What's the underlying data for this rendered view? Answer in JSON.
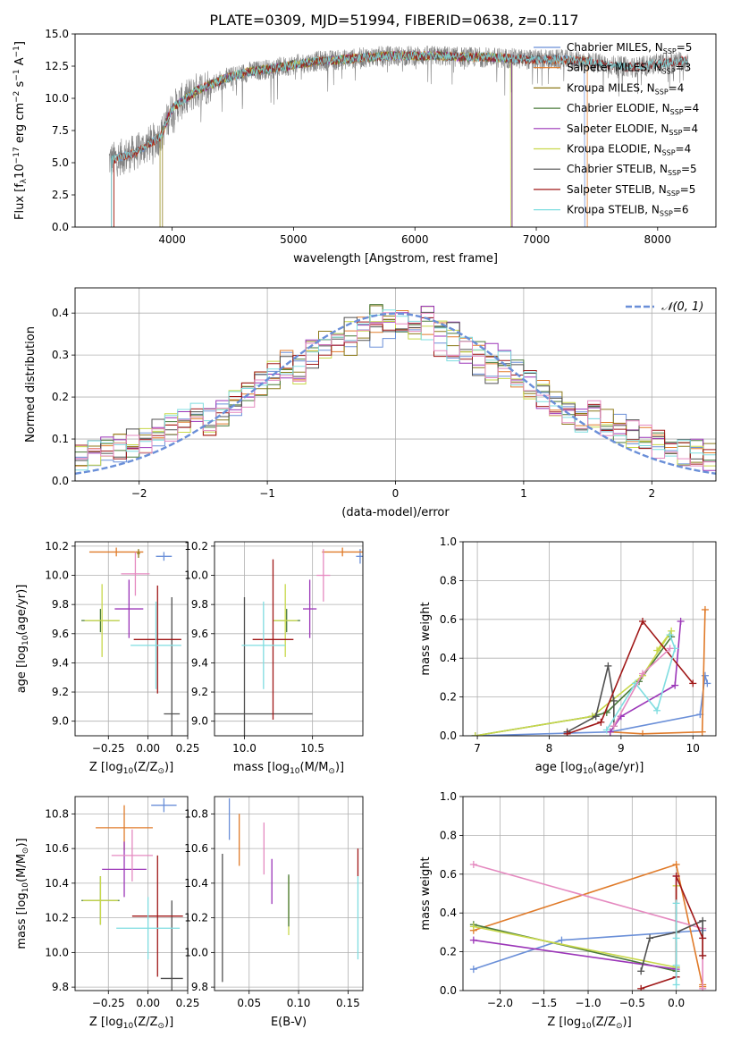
{
  "figure_title": "PLATE=0309, MJD=51994, FIBERID=0638, z=0.117",
  "colors": {
    "Chabrier MILES": "#6a8fd8",
    "Salpeter MILES": "#e07b2a",
    "Kroupa MILES": "#8c7a1a",
    "Chabrier ELODIE": "#4a7a3a",
    "Salpeter ELODIE": "#9b35b8",
    "Kroupa ELODIE": "#c8d84a",
    "Chabrier STELIB": "#505050",
    "Salpeter STELIB": "#a01818",
    "Kroupa STELIB": "#7fdde0",
    "normal": "#6a8fd8"
  },
  "chart_data": [
    {
      "id": "spectrum",
      "type": "line",
      "xlabel": "wavelength [Angstrom, rest frame]",
      "ylabel": "Flux [f_λ 10^-17 erg cm^-2 s^-1 A^-1]",
      "xlim": [
        3200,
        8480
      ],
      "ylim": [
        0,
        15
      ],
      "xticks": [
        4000,
        5000,
        6000,
        7000,
        8000
      ],
      "yticks": [
        0.0,
        2.5,
        5.0,
        7.5,
        10.0,
        12.5,
        15.0
      ],
      "grid": false,
      "legend": "right",
      "legend_entries": [
        "Chabrier MILES, N_SSP=5",
        "Salpeter MILES, N_SSP=3",
        "Kroupa MILES, N_SSP=4",
        "Chabrier ELODIE, N_SSP=4",
        "Salpeter ELODIE, N_SSP=4",
        "Kroupa ELODIE, N_SSP=4",
        "Chabrier STELIB, N_SSP=5",
        "Salpeter STELIB, N_SSP=5",
        "Kroupa STELIB, N_SSP=6"
      ],
      "continuum": {
        "x": [
          3500,
          3700,
          3900,
          4000,
          4200,
          4400,
          4600,
          4800,
          5000,
          5200,
          5400,
          5600,
          5800,
          6000,
          6200,
          6400,
          6600,
          6800,
          7000,
          7200,
          7400,
          7600,
          7800,
          8000,
          8200
        ],
        "y": [
          5.2,
          5.8,
          7.0,
          9.2,
          10.6,
          11.4,
          12.0,
          12.3,
          12.6,
          12.9,
          13.0,
          13.2,
          13.3,
          13.3,
          13.3,
          13.2,
          13.2,
          13.1,
          13.0,
          13.0,
          12.9,
          12.6,
          12.4,
          12.7,
          12.9
        ]
      }
    },
    {
      "id": "residuals",
      "type": "histogram",
      "xlabel": "(data-model)/error",
      "ylabel": "Normed distribution",
      "xlim": [
        -2.5,
        2.5
      ],
      "ylim": [
        0,
        0.46
      ],
      "xticks": [
        -2,
        -1,
        0,
        1,
        2
      ],
      "yticks": [
        0.0,
        0.1,
        0.2,
        0.3,
        0.4
      ],
      "grid": true,
      "legend": "top-right",
      "legend_entries": [
        "N(0,1)"
      ],
      "bin_width": 0.1
    },
    {
      "id": "age-vs-Z",
      "type": "errorbar",
      "xlabel": "Z [log10(Z/Z_sun)]",
      "ylabel": "age [log10(age/yr)]",
      "xlim": [
        -0.46,
        0.25
      ],
      "ylim": [
        8.9,
        10.23
      ],
      "xticks": [
        -0.25,
        0.0,
        0.25
      ],
      "yticks": [
        9.0,
        9.2,
        9.4,
        9.6,
        9.8,
        10.0,
        10.2
      ],
      "grid": true,
      "points": [
        {
          "c": "Chabrier MILES",
          "x": 0.1,
          "xerr": 0.05,
          "y": 10.13,
          "yerr": 0.03
        },
        {
          "c": "Salpeter MILES",
          "x": -0.2,
          "xerr": 0.17,
          "y": 10.16,
          "yerr": 0.03
        },
        {
          "c": "Kroupa MILES",
          "x": -0.06,
          "xerr": 0.01,
          "y": 10.15,
          "yerr": 0.03
        },
        {
          "c": "Chabrier ELODIE",
          "x": -0.3,
          "xerr": 0.12,
          "y": 9.69,
          "yerr": 0.08
        },
        {
          "c": "Salpeter ELODIE",
          "x": -0.12,
          "xerr": 0.09,
          "y": 9.77,
          "yerr": 0.2
        },
        {
          "c": "Kroupa ELODIE",
          "x": -0.29,
          "xerr": 0.11,
          "y": 9.69,
          "yerr": 0.25
        },
        {
          "c": "Chabrier STELIB",
          "x": 0.15,
          "xerr": 0.05,
          "y": 9.05,
          "yerr": 0.8
        },
        {
          "c": "Salpeter STELIB",
          "x": 0.06,
          "xerr": 0.15,
          "y": 9.56,
          "yerr": 0.37
        },
        {
          "c": "Kroupa STELIB",
          "x": 0.05,
          "xerr": 0.16,
          "y": 9.52,
          "yerr": 0.3
        },
        {
          "c": "pink",
          "x": -0.08,
          "xerr": 0.09,
          "y": 10.01,
          "yerr": 0.15
        }
      ]
    },
    {
      "id": "age-vs-mass",
      "type": "errorbar",
      "xlabel": "mass [log10(M/M_sun)]",
      "ylabel": "",
      "xlim": [
        9.78,
        10.87
      ],
      "ylim": [
        8.9,
        10.23
      ],
      "xticks": [
        10.0,
        10.5
      ],
      "yticks": [
        9.0,
        9.2,
        9.4,
        9.6,
        9.8,
        10.0,
        10.2
      ],
      "grid": true,
      "points": [
        {
          "c": "Chabrier MILES",
          "x": 10.85,
          "xerr": 0.03,
          "y": 10.13,
          "yerr": 0.05
        },
        {
          "c": "Salpeter MILES",
          "x": 10.72,
          "xerr": 0.15,
          "y": 10.16,
          "yerr": 0.03
        },
        {
          "c": "Chabrier ELODIE",
          "x": 10.31,
          "xerr": 0.1,
          "y": 9.69,
          "yerr": 0.08
        },
        {
          "c": "Salpeter ELODIE",
          "x": 10.48,
          "xerr": 0.05,
          "y": 9.77,
          "yerr": 0.2
        },
        {
          "c": "Kroupa ELODIE",
          "x": 10.3,
          "xerr": 0.09,
          "y": 9.69,
          "yerr": 0.25
        },
        {
          "c": "Chabrier STELIB",
          "x": 10.0,
          "xerr": 0.5,
          "y": 9.05,
          "yerr": 0.8
        },
        {
          "c": "Salpeter STELIB",
          "x": 10.21,
          "xerr": 0.15,
          "y": 9.56,
          "yerr": 0.55
        },
        {
          "c": "Kroupa STELIB",
          "x": 10.14,
          "xerr": 0.16,
          "y": 9.52,
          "yerr": 0.3
        },
        {
          "c": "pink",
          "x": 10.58,
          "xerr": 0.05,
          "y": 10.0,
          "yerr": 0.18
        }
      ]
    },
    {
      "id": "massweight-vs-age",
      "type": "line",
      "xlabel": "age [log10(age/yr)]",
      "ylabel": "mass weight",
      "xlim": [
        6.8,
        10.32
      ],
      "ylim": [
        0,
        1.0
      ],
      "xticks": [
        7,
        8,
        9,
        10
      ],
      "yticks": [
        0.0,
        0.2,
        0.4,
        0.6,
        0.8,
        1.0
      ],
      "grid": true,
      "series": [
        {
          "c": "Chabrier MILES",
          "x": [
            6.97,
            8.85,
            10.1,
            10.17,
            10.2
          ],
          "y": [
            0.0,
            0.02,
            0.11,
            0.31,
            0.27
          ]
        },
        {
          "c": "Salpeter MILES",
          "x": [
            8.85,
            9.3,
            10.13,
            10.17
          ],
          "y": [
            0.02,
            0.01,
            0.02,
            0.65
          ]
        },
        {
          "c": "Chabrier ELODIE",
          "x": [
            6.97,
            8.6,
            8.8,
            9.25,
            9.7
          ],
          "y": [
            0.0,
            0.1,
            0.12,
            0.28,
            0.51
          ]
        },
        {
          "c": "Salpeter ELODIE",
          "x": [
            8.85,
            9.0,
            9.75,
            9.83
          ],
          "y": [
            0.02,
            0.1,
            0.26,
            0.59
          ]
        },
        {
          "c": "Kroupa ELODIE",
          "x": [
            6.97,
            8.6,
            9.3,
            9.7,
            9.5
          ],
          "y": [
            0.0,
            0.1,
            0.31,
            0.54,
            0.44
          ]
        },
        {
          "c": "Chabrier STELIB",
          "x": [
            8.25,
            8.65,
            8.82,
            8.9,
            8.9
          ],
          "y": [
            0.02,
            0.1,
            0.36,
            0.18,
            0.05
          ]
        },
        {
          "c": "Salpeter STELIB",
          "x": [
            8.25,
            8.72,
            9.3,
            10.0
          ],
          "y": [
            0.01,
            0.07,
            0.59,
            0.27
          ]
        },
        {
          "c": "Kroupa STELIB",
          "x": [
            8.8,
            9.2,
            9.5,
            9.75,
            9.68
          ],
          "y": [
            0.03,
            0.27,
            0.13,
            0.45,
            0.52
          ]
        },
        {
          "c": "pink",
          "x": [
            8.9,
            9.3,
            9.68
          ],
          "y": [
            0.05,
            0.32,
            0.45
          ]
        }
      ]
    },
    {
      "id": "mass-vs-Z",
      "type": "errorbar",
      "xlabel": "Z [log10(Z/Z_sun)]",
      "ylabel": "mass [log10(M/M_sun)]",
      "xlim": [
        -0.46,
        0.25
      ],
      "ylim": [
        9.78,
        10.9
      ],
      "xticks": [
        -0.25,
        0.0,
        0.25
      ],
      "yticks": [
        9.8,
        10.0,
        10.2,
        10.4,
        10.6,
        10.8
      ],
      "grid": true,
      "points": [
        {
          "c": "Chabrier MILES",
          "x": 0.1,
          "xerr": 0.08,
          "y": 10.85,
          "yerr": 0.04
        },
        {
          "c": "Salpeter MILES",
          "x": -0.15,
          "xerr": 0.18,
          "y": 10.72,
          "yerr": 0.13
        },
        {
          "c": "Chabrier ELODIE",
          "x": -0.3,
          "xerr": 0.12,
          "y": 10.3,
          "yerr": 0.14
        },
        {
          "c": "Salpeter ELODIE",
          "x": -0.15,
          "xerr": 0.14,
          "y": 10.48,
          "yerr": 0.16
        },
        {
          "c": "Kroupa ELODIE",
          "x": -0.3,
          "xerr": 0.11,
          "y": 10.3,
          "yerr": 0.14
        },
        {
          "c": "Chabrier STELIB",
          "x": 0.15,
          "xerr": 0.07,
          "y": 9.85,
          "yerr": 0.45
        },
        {
          "c": "Salpeter STELIB",
          "x": 0.06,
          "xerr": 0.16,
          "y": 10.21,
          "yerr": 0.35
        },
        {
          "c": "Kroupa STELIB",
          "x": 0.0,
          "xerr": 0.2,
          "y": 10.14,
          "yerr": 0.18
        },
        {
          "c": "pink",
          "x": -0.1,
          "xerr": 0.13,
          "y": 10.56,
          "yerr": 0.15
        }
      ]
    },
    {
      "id": "mass-vs-ebv",
      "type": "errorbar",
      "xlabel": "E(B-V)",
      "ylabel": "",
      "xlim": [
        0.015,
        0.165
      ],
      "ylim": [
        9.78,
        10.9
      ],
      "xticks": [
        0.05,
        0.1,
        0.15
      ],
      "yticks": [
        9.8,
        10.0,
        10.2,
        10.4,
        10.6,
        10.8
      ],
      "grid": true,
      "points": [
        {
          "c": "Chabrier MILES",
          "x": 0.03,
          "y": 10.77,
          "yerr": 0.12
        },
        {
          "c": "Salpeter MILES",
          "x": 0.04,
          "y": 10.65,
          "yerr": 0.15
        },
        {
          "c": "pink",
          "x": 0.065,
          "y": 10.6,
          "yerr": 0.15
        },
        {
          "c": "Salpeter ELODIE",
          "x": 0.073,
          "y": 10.41,
          "yerr": 0.13
        },
        {
          "c": "Kroupa ELODIE",
          "x": 0.09,
          "y": 10.27,
          "yerr": 0.17
        },
        {
          "c": "Chabrier ELODIE",
          "x": 0.09,
          "y": 10.3,
          "yerr": 0.15
        },
        {
          "c": "Chabrier STELIB",
          "x": 0.023,
          "y": 10.2,
          "yerr": 0.37
        },
        {
          "c": "Salpeter STELIB",
          "x": 0.16,
          "y": 10.52,
          "yerr": 0.08
        },
        {
          "c": "Kroupa STELIB",
          "x": 0.16,
          "y": 10.2,
          "yerr": 0.24
        }
      ]
    },
    {
      "id": "massweight-vs-Z",
      "type": "line",
      "xlabel": "Z [log10(Z/Z_sun)]",
      "ylabel": "mass weight",
      "xlim": [
        -2.42,
        0.45
      ],
      "ylim": [
        0,
        1.0
      ],
      "xticks": [
        -2.0,
        -1.5,
        -1.0,
        -0.5,
        0.0
      ],
      "yticks": [
        0.0,
        0.2,
        0.4,
        0.6,
        0.8,
        1.0
      ],
      "grid": true,
      "series": [
        {
          "c": "Chabrier MILES",
          "x": [
            -2.3,
            -1.3,
            0.3,
            0.3
          ],
          "y": [
            0.11,
            0.26,
            0.31,
            0.27
          ]
        },
        {
          "c": "Salpeter MILES",
          "x": [
            -2.3,
            0.0,
            0.3,
            0.3
          ],
          "y": [
            0.31,
            0.65,
            0.02,
            0.03
          ]
        },
        {
          "c": "pink",
          "x": [
            -2.3,
            0.3,
            0.3
          ],
          "y": [
            0.65,
            0.32,
            0.01
          ]
        },
        {
          "c": "Chabrier ELODIE",
          "x": [
            -2.3,
            0.0,
            0.0
          ],
          "y": [
            0.34,
            0.1,
            0.12
          ]
        },
        {
          "c": "Salpeter ELODIE",
          "x": [
            -2.3,
            0.0,
            0.0
          ],
          "y": [
            0.26,
            0.11,
            0.59
          ]
        },
        {
          "c": "Kroupa ELODIE",
          "x": [
            -2.3,
            0.0,
            0.0
          ],
          "y": [
            0.33,
            0.12,
            0.54
          ]
        },
        {
          "c": "Chabrier STELIB",
          "x": [
            -0.4,
            -0.3,
            0.0,
            0.3,
            0.3
          ],
          "y": [
            0.1,
            0.27,
            0.3,
            0.36,
            0.18
          ]
        },
        {
          "c": "Salpeter STELIB",
          "x": [
            -0.4,
            0.0,
            0.0,
            0.3,
            0.3
          ],
          "y": [
            0.01,
            0.07,
            0.59,
            0.27,
            0.18
          ]
        },
        {
          "c": "Kroupa STELIB",
          "x": [
            0.0,
            0.0,
            0.0,
            0.0
          ],
          "y": [
            0.03,
            0.27,
            0.45,
            0.13
          ]
        }
      ]
    }
  ]
}
